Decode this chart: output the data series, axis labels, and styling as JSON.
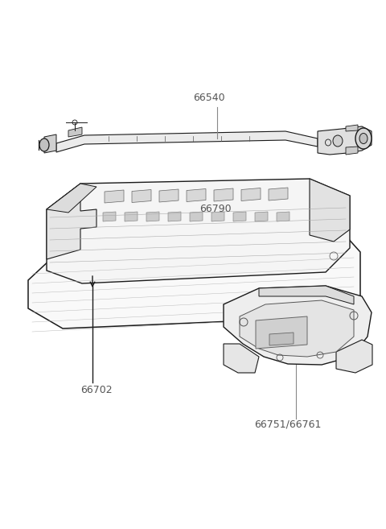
{
  "bg_color": "#ffffff",
  "line_color": "#1a1a1a",
  "label_color": "#555555",
  "label_line_color": "#888888",
  "label_font_size": 9,
  "fig_width": 4.8,
  "fig_height": 6.57,
  "dpi": 100
}
